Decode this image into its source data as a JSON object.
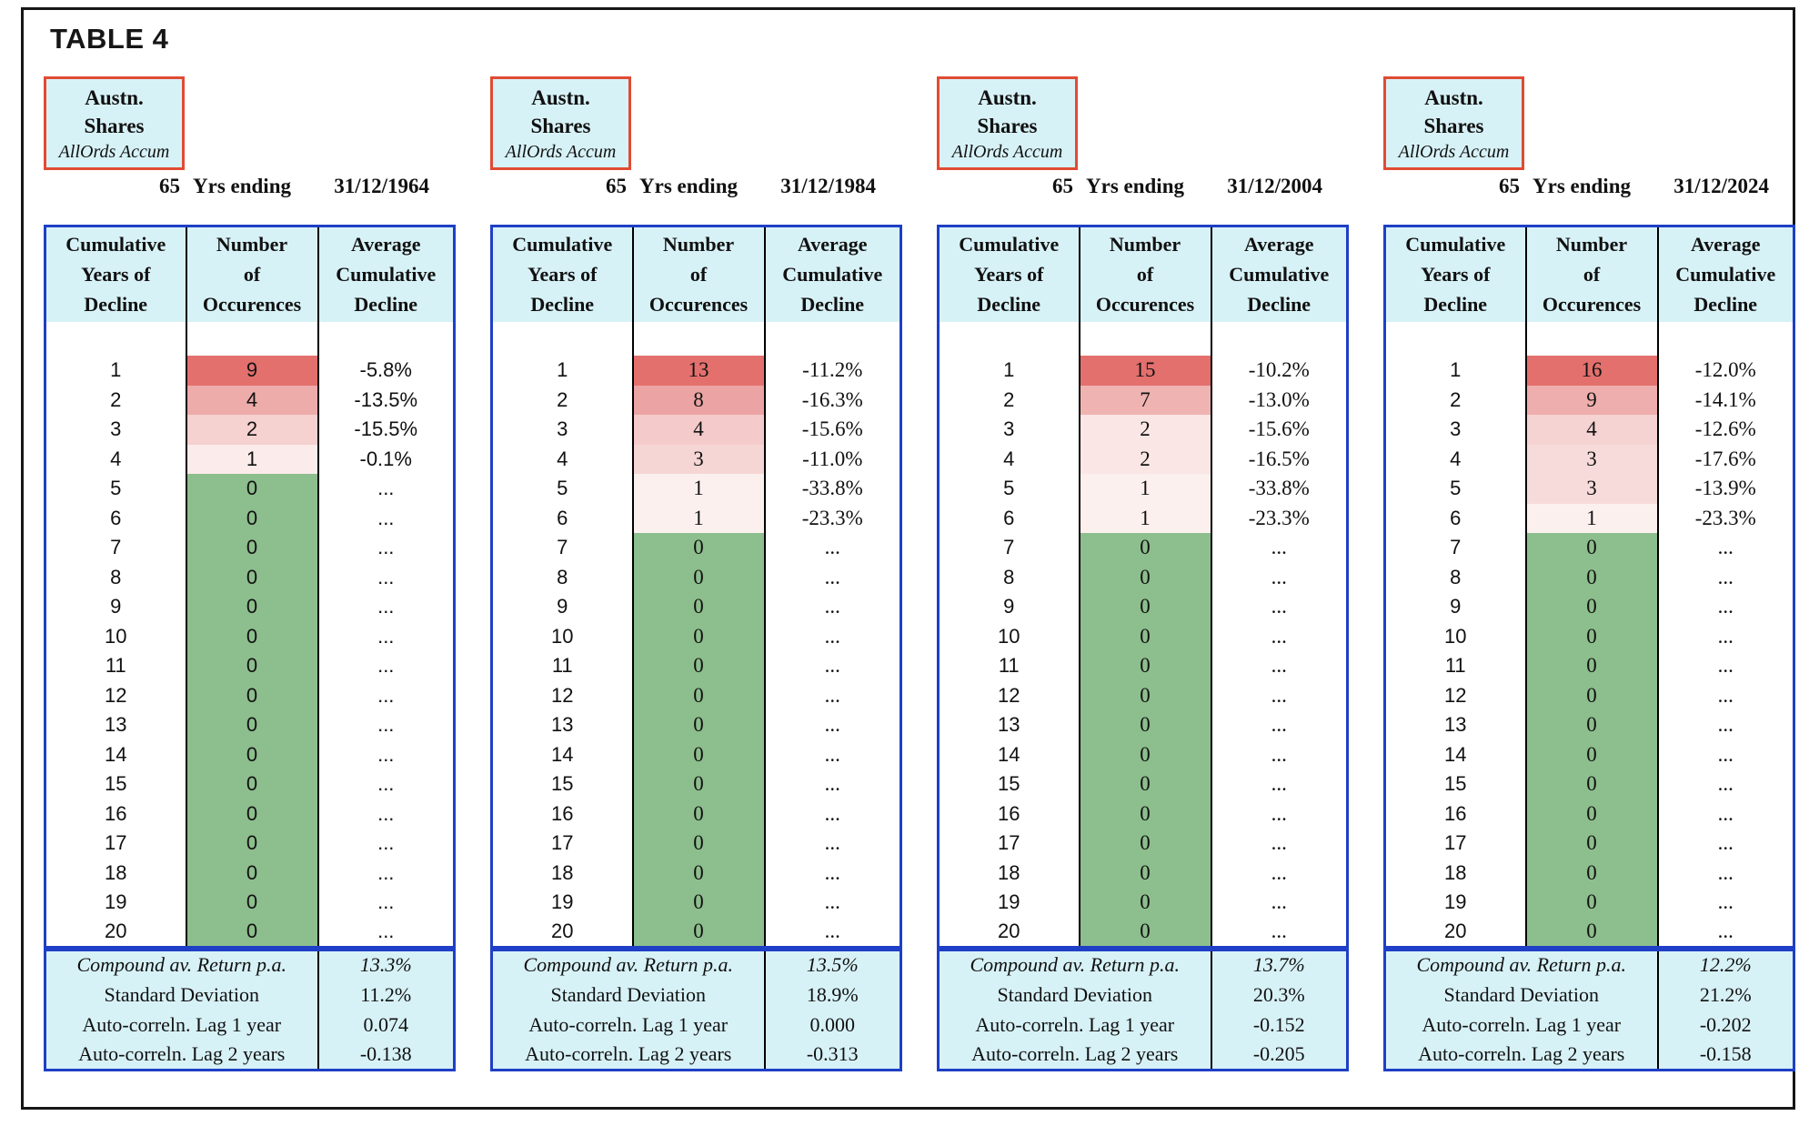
{
  "title": "TABLE 4",
  "colors": {
    "frame_border": "#161616",
    "table_border_blue": "#1f3fc6",
    "asset_box_border_red": "#e14b33",
    "header_fill_cyan": "#d7f2f7",
    "zero_fill_green": "#8dbe8d",
    "max_fill_red": "#e3706d",
    "divider_black": "#000000"
  },
  "columns": [
    [
      "Cumulative",
      "Years of",
      "Decline"
    ],
    [
      "Number",
      "of",
      "Occurences"
    ],
    [
      "Average",
      "Cumulative",
      "Decline"
    ]
  ],
  "panels": [
    {
      "asset": [
        "Austn.",
        "Shares",
        "AllOrds Accum"
      ],
      "years": "65",
      "period_label": "Yrs ending",
      "period_end": "31/12/1964",
      "serif_data": false,
      "rows": [
        {
          "y": "1",
          "n": "9",
          "d": "-5.8%",
          "bg": "#e3706d"
        },
        {
          "y": "2",
          "n": "4",
          "d": "-13.5%",
          "bg": "#edabaa"
        },
        {
          "y": "3",
          "n": "2",
          "d": "-15.5%",
          "bg": "#f5d1d0"
        },
        {
          "y": "4",
          "n": "1",
          "d": "-0.1%",
          "bg": "#fbebea"
        },
        {
          "y": "5",
          "n": "0",
          "d": "...",
          "bg": "#8dbe8d"
        },
        {
          "y": "6",
          "n": "0",
          "d": "...",
          "bg": "#8dbe8d"
        },
        {
          "y": "7",
          "n": "0",
          "d": "...",
          "bg": "#8dbe8d"
        },
        {
          "y": "8",
          "n": "0",
          "d": "...",
          "bg": "#8dbe8d"
        },
        {
          "y": "9",
          "n": "0",
          "d": "...",
          "bg": "#8dbe8d"
        },
        {
          "y": "10",
          "n": "0",
          "d": "...",
          "bg": "#8dbe8d"
        },
        {
          "y": "11",
          "n": "0",
          "d": "...",
          "bg": "#8dbe8d"
        },
        {
          "y": "12",
          "n": "0",
          "d": "...",
          "bg": "#8dbe8d"
        },
        {
          "y": "13",
          "n": "0",
          "d": "...",
          "bg": "#8dbe8d"
        },
        {
          "y": "14",
          "n": "0",
          "d": "...",
          "bg": "#8dbe8d"
        },
        {
          "y": "15",
          "n": "0",
          "d": "...",
          "bg": "#8dbe8d"
        },
        {
          "y": "16",
          "n": "0",
          "d": "...",
          "bg": "#8dbe8d"
        },
        {
          "y": "17",
          "n": "0",
          "d": "...",
          "bg": "#8dbe8d"
        },
        {
          "y": "18",
          "n": "0",
          "d": "...",
          "bg": "#8dbe8d"
        },
        {
          "y": "19",
          "n": "0",
          "d": "...",
          "bg": "#8dbe8d"
        },
        {
          "y": "20",
          "n": "0",
          "d": "...",
          "bg": "#8dbe8d"
        }
      ],
      "stats": [
        {
          "label": "Compound av. Return p.a.",
          "value": "13.3%",
          "italic": true
        },
        {
          "label": "Standard Deviation",
          "value": "11.2%"
        },
        {
          "label": "Auto-correln. Lag 1 year",
          "value": "0.074"
        },
        {
          "label": "Auto-correln. Lag 2 years",
          "value": "-0.138"
        }
      ]
    },
    {
      "asset": [
        "Austn.",
        "Shares",
        "AllOrds Accum"
      ],
      "years": "65",
      "period_label": "Yrs ending",
      "period_end": "31/12/1984",
      "serif_data": true,
      "rows": [
        {
          "y": "1",
          "n": "13",
          "d": "-11.2%",
          "bg": "#e3706d"
        },
        {
          "y": "2",
          "n": "8",
          "d": "-16.3%",
          "bg": "#eba4a3"
        },
        {
          "y": "3",
          "n": "4",
          "d": "-15.6%",
          "bg": "#f4cbca"
        },
        {
          "y": "4",
          "n": "3",
          "d": "-11.0%",
          "bg": "#f6d6d5"
        },
        {
          "y": "5",
          "n": "1",
          "d": "-33.8%",
          "bg": "#fcf0ef"
        },
        {
          "y": "6",
          "n": "1",
          "d": "-23.3%",
          "bg": "#fcf0ef"
        },
        {
          "y": "7",
          "n": "0",
          "d": "...",
          "bg": "#8dbe8d"
        },
        {
          "y": "8",
          "n": "0",
          "d": "...",
          "bg": "#8dbe8d"
        },
        {
          "y": "9",
          "n": "0",
          "d": "...",
          "bg": "#8dbe8d"
        },
        {
          "y": "10",
          "n": "0",
          "d": "...",
          "bg": "#8dbe8d"
        },
        {
          "y": "11",
          "n": "0",
          "d": "...",
          "bg": "#8dbe8d"
        },
        {
          "y": "12",
          "n": "0",
          "d": "...",
          "bg": "#8dbe8d"
        },
        {
          "y": "13",
          "n": "0",
          "d": "...",
          "bg": "#8dbe8d"
        },
        {
          "y": "14",
          "n": "0",
          "d": "...",
          "bg": "#8dbe8d"
        },
        {
          "y": "15",
          "n": "0",
          "d": "...",
          "bg": "#8dbe8d"
        },
        {
          "y": "16",
          "n": "0",
          "d": "...",
          "bg": "#8dbe8d"
        },
        {
          "y": "17",
          "n": "0",
          "d": "...",
          "bg": "#8dbe8d"
        },
        {
          "y": "18",
          "n": "0",
          "d": "...",
          "bg": "#8dbe8d"
        },
        {
          "y": "19",
          "n": "0",
          "d": "...",
          "bg": "#8dbe8d"
        },
        {
          "y": "20",
          "n": "0",
          "d": "...",
          "bg": "#8dbe8d"
        }
      ],
      "stats": [
        {
          "label": "Compound av. Return p.a.",
          "value": "13.5%",
          "italic": true
        },
        {
          "label": "Standard Deviation",
          "value": "18.9%"
        },
        {
          "label": "Auto-correln. Lag 1 year",
          "value": "0.000"
        },
        {
          "label": "Auto-correln. Lag 2 years",
          "value": "-0.313"
        }
      ]
    },
    {
      "asset": [
        "Austn.",
        "Shares",
        "AllOrds Accum"
      ],
      "years": "65",
      "period_label": "Yrs ending",
      "period_end": "31/12/2004",
      "serif_data": true,
      "rows": [
        {
          "y": "1",
          "n": "15",
          "d": "-10.2%",
          "bg": "#e3706d"
        },
        {
          "y": "2",
          "n": "7",
          "d": "-13.0%",
          "bg": "#efb3b1"
        },
        {
          "y": "3",
          "n": "2",
          "d": "-15.6%",
          "bg": "#f9e6e5"
        },
        {
          "y": "4",
          "n": "2",
          "d": "-16.5%",
          "bg": "#f9e6e5"
        },
        {
          "y": "5",
          "n": "1",
          "d": "-33.8%",
          "bg": "#fcf0ef"
        },
        {
          "y": "6",
          "n": "1",
          "d": "-23.3%",
          "bg": "#fcf0ef"
        },
        {
          "y": "7",
          "n": "0",
          "d": "...",
          "bg": "#8dbe8d"
        },
        {
          "y": "8",
          "n": "0",
          "d": "...",
          "bg": "#8dbe8d"
        },
        {
          "y": "9",
          "n": "0",
          "d": "...",
          "bg": "#8dbe8d"
        },
        {
          "y": "10",
          "n": "0",
          "d": "...",
          "bg": "#8dbe8d"
        },
        {
          "y": "11",
          "n": "0",
          "d": "...",
          "bg": "#8dbe8d"
        },
        {
          "y": "12",
          "n": "0",
          "d": "...",
          "bg": "#8dbe8d"
        },
        {
          "y": "13",
          "n": "0",
          "d": "...",
          "bg": "#8dbe8d"
        },
        {
          "y": "14",
          "n": "0",
          "d": "...",
          "bg": "#8dbe8d"
        },
        {
          "y": "15",
          "n": "0",
          "d": "...",
          "bg": "#8dbe8d"
        },
        {
          "y": "16",
          "n": "0",
          "d": "...",
          "bg": "#8dbe8d"
        },
        {
          "y": "17",
          "n": "0",
          "d": "...",
          "bg": "#8dbe8d"
        },
        {
          "y": "18",
          "n": "0",
          "d": "...",
          "bg": "#8dbe8d"
        },
        {
          "y": "19",
          "n": "0",
          "d": "...",
          "bg": "#8dbe8d"
        },
        {
          "y": "20",
          "n": "0",
          "d": "...",
          "bg": "#8dbe8d"
        }
      ],
      "stats": [
        {
          "label": "Compound av. Return p.a.",
          "value": "13.7%",
          "italic": true
        },
        {
          "label": "Standard Deviation",
          "value": "20.3%"
        },
        {
          "label": "Auto-correln. Lag 1 year",
          "value": "-0.152"
        },
        {
          "label": "Auto-correln. Lag 2 years",
          "value": "-0.205"
        }
      ]
    },
    {
      "asset": [
        "Austn.",
        "Shares",
        "AllOrds Accum"
      ],
      "years": "65",
      "period_label": "Yrs ending",
      "period_end": "31/12/2024",
      "serif_data": true,
      "rows": [
        {
          "y": "1",
          "n": "16",
          "d": "-12.0%",
          "bg": "#e3706d"
        },
        {
          "y": "2",
          "n": "9",
          "d": "-14.1%",
          "bg": "#eeaead"
        },
        {
          "y": "3",
          "n": "4",
          "d": "-12.6%",
          "bg": "#f5d3d2"
        },
        {
          "y": "4",
          "n": "3",
          "d": "-17.6%",
          "bg": "#f7dbda"
        },
        {
          "y": "5",
          "n": "3",
          "d": "-13.9%",
          "bg": "#f7dbda"
        },
        {
          "y": "6",
          "n": "1",
          "d": "-23.3%",
          "bg": "#fcf0ef"
        },
        {
          "y": "7",
          "n": "0",
          "d": "...",
          "bg": "#8dbe8d"
        },
        {
          "y": "8",
          "n": "0",
          "d": "...",
          "bg": "#8dbe8d"
        },
        {
          "y": "9",
          "n": "0",
          "d": "...",
          "bg": "#8dbe8d"
        },
        {
          "y": "10",
          "n": "0",
          "d": "...",
          "bg": "#8dbe8d"
        },
        {
          "y": "11",
          "n": "0",
          "d": "...",
          "bg": "#8dbe8d"
        },
        {
          "y": "12",
          "n": "0",
          "d": "...",
          "bg": "#8dbe8d"
        },
        {
          "y": "13",
          "n": "0",
          "d": "...",
          "bg": "#8dbe8d"
        },
        {
          "y": "14",
          "n": "0",
          "d": "...",
          "bg": "#8dbe8d"
        },
        {
          "y": "15",
          "n": "0",
          "d": "...",
          "bg": "#8dbe8d"
        },
        {
          "y": "16",
          "n": "0",
          "d": "...",
          "bg": "#8dbe8d"
        },
        {
          "y": "17",
          "n": "0",
          "d": "...",
          "bg": "#8dbe8d"
        },
        {
          "y": "18",
          "n": "0",
          "d": "...",
          "bg": "#8dbe8d"
        },
        {
          "y": "19",
          "n": "0",
          "d": "...",
          "bg": "#8dbe8d"
        },
        {
          "y": "20",
          "n": "0",
          "d": "...",
          "bg": "#8dbe8d"
        }
      ],
      "stats": [
        {
          "label": "Compound av. Return p.a.",
          "value": "12.2%",
          "italic": true
        },
        {
          "label": "Standard Deviation",
          "value": "21.2%"
        },
        {
          "label": "Auto-correln. Lag 1 year",
          "value": "-0.202"
        },
        {
          "label": "Auto-correln. Lag 2 years",
          "value": "-0.158"
        }
      ]
    }
  ]
}
